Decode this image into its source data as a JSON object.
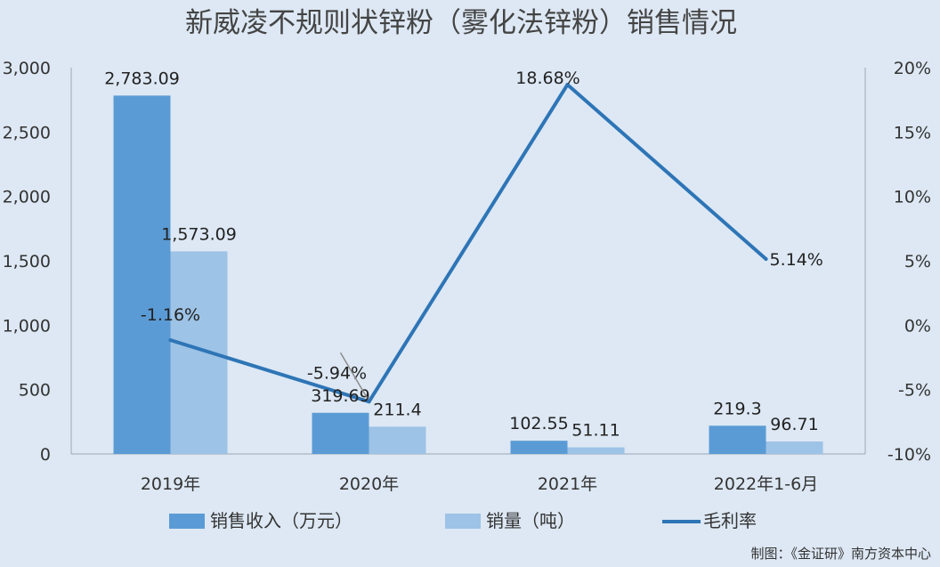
{
  "chart_data": {
    "type": "bar",
    "title": "新威凌不规则状锌粉（雾化法锌粉）销售情况",
    "categories": [
      "2019年",
      "2020年",
      "2021年",
      "2022年1-6月"
    ],
    "series": [
      {
        "name": "销售收入（万元）",
        "type": "bar",
        "axis": "left",
        "color": "#5b9bd5",
        "values": [
          2783.09,
          319.69,
          102.55,
          219.3
        ],
        "labels": [
          "2,783.09",
          "319.69",
          "102.55",
          "219.3"
        ]
      },
      {
        "name": "销量（吨）",
        "type": "bar",
        "axis": "left",
        "color": "#9dc3e6",
        "values": [
          1573.09,
          211.4,
          51.11,
          96.71
        ],
        "labels": [
          "1,573.09",
          "211.4",
          "51.11",
          "96.71"
        ]
      },
      {
        "name": "毛利率",
        "type": "line",
        "axis": "right",
        "color": "#2e75b6",
        "values": [
          -1.16,
          -5.94,
          18.68,
          5.14
        ],
        "labels": [
          "-1.16%",
          "-5.94%",
          "18.68%",
          "5.14%"
        ]
      }
    ],
    "y_left": {
      "min": 0,
      "max": 3000,
      "ticks": [
        0,
        500,
        1000,
        1500,
        2000,
        2500,
        3000
      ],
      "tick_labels": [
        "0",
        "500",
        "1,000",
        "1,500",
        "2,000",
        "2,500",
        "3,000"
      ]
    },
    "y_right": {
      "min": -10,
      "max": 20,
      "ticks": [
        -10,
        -5,
        0,
        5,
        10,
        15,
        20
      ],
      "tick_labels": [
        "-10%",
        "-5%",
        "0%",
        "5%",
        "10%",
        "15%",
        "20%"
      ]
    },
    "legend_position": "bottom",
    "grid": false
  },
  "credit": "制图：《金证研》南方资本中心"
}
